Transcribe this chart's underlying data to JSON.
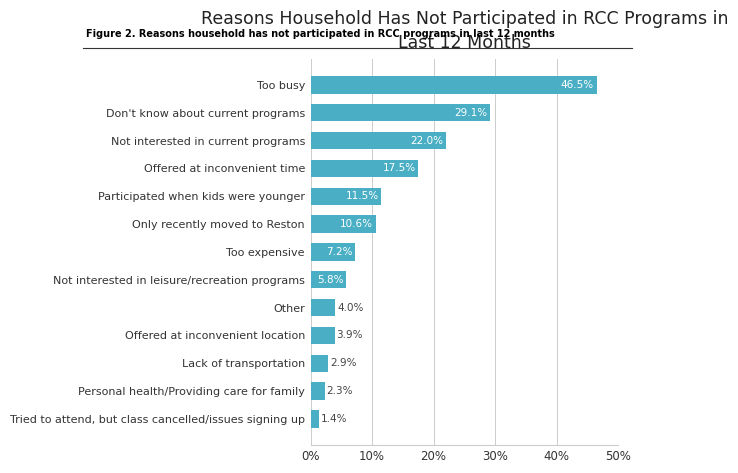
{
  "title": "Reasons Household Has Not Participated in RCC Programs in\nLast 12 Months",
  "figure_label": "Figure 2. Reasons household has not participated in RCC programs in last 12 months",
  "categories": [
    "Tried to attend, but class cancelled/issues signing up",
    "Personal health/Providing care for family",
    "Lack of transportation",
    "Offered at inconvenient location",
    "Other",
    "Not interested in leisure/recreation programs",
    "Too expensive",
    "Only recently moved to Reston",
    "Participated when kids were younger",
    "Offered at inconvenient time",
    "Not interested in current programs",
    "Don't know about current programs",
    "Too busy"
  ],
  "values": [
    1.4,
    2.3,
    2.9,
    3.9,
    4.0,
    5.8,
    7.2,
    10.6,
    11.5,
    17.5,
    22.0,
    29.1,
    46.5
  ],
  "bar_color": "#4aafc5",
  "xlim": [
    0,
    50
  ],
  "xticks": [
    0,
    10,
    20,
    30,
    40,
    50
  ],
  "xticklabels": [
    "0%",
    "10%",
    "20%",
    "30%",
    "40%",
    "50%"
  ],
  "background_color": "#ffffff",
  "title_fontsize": 12.5,
  "label_fontsize": 8.0,
  "value_fontsize": 7.5,
  "figcaption_fontsize": 7.0,
  "value_threshold": 5.0
}
